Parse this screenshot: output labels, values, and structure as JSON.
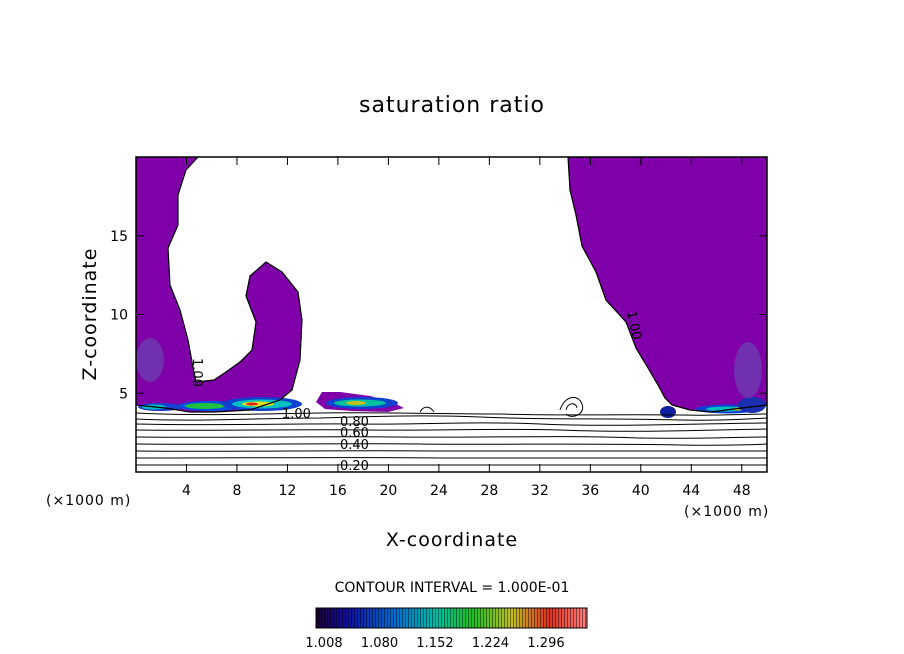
{
  "chart_data": {
    "type": "contour",
    "title": "saturation ratio",
    "xlabel": "X-coordinate",
    "ylabel": "Z-coordinate",
    "x_unit": "(×1000 m)",
    "x_unit_right": "(×1000 m)",
    "xlim": [
      0,
      50
    ],
    "ylim": [
      0,
      20
    ],
    "x_ticks": [
      "4",
      "8",
      "12",
      "16",
      "20",
      "24",
      "28",
      "32",
      "36",
      "40",
      "44",
      "48"
    ],
    "y_ticks": [
      "5",
      "10",
      "15"
    ],
    "contour_interval_text": "CONTOUR INTERVAL = 1.000E-01",
    "contour_labels": [
      "1.00",
      "1.00",
      "1.00",
      "0.80",
      "0.60",
      "0.40",
      "0.20"
    ],
    "colorbar": {
      "ticks": [
        "1.008",
        "1.080",
        "1.152",
        "1.224",
        "1.296"
      ],
      "colors": [
        "#1a0033",
        "#0000c8",
        "#00c8c8",
        "#00c800",
        "#c8c800",
        "#c80000",
        "#ff6666"
      ]
    },
    "colors": {
      "saturated_region": "#7f00a8",
      "high_saturation": "#00b8c0",
      "peak": "#e80000"
    }
  }
}
